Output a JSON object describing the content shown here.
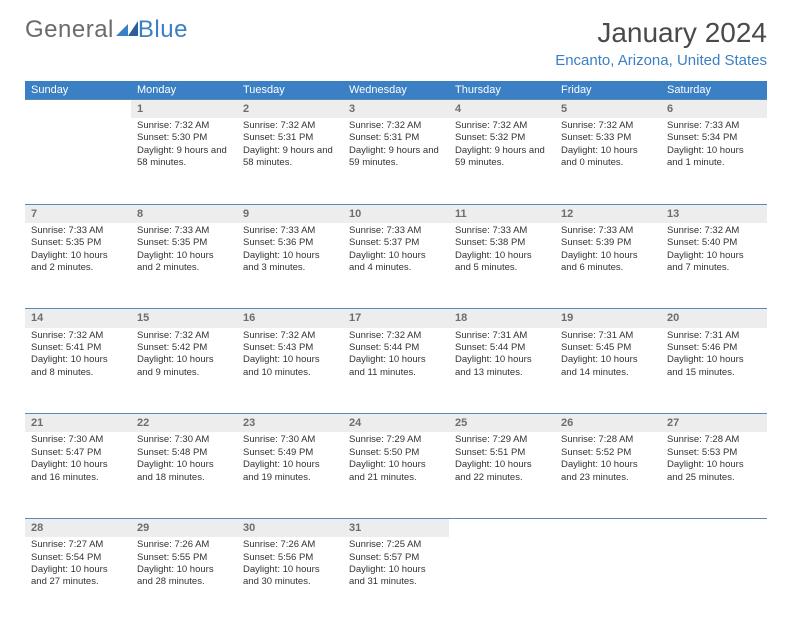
{
  "brand": {
    "part1": "General",
    "part2": "Blue"
  },
  "title": "January 2024",
  "location": "Encanto, Arizona, United States",
  "colors": {
    "header_bg": "#3b7fc4",
    "header_text": "#ffffff",
    "daynum_bg": "#ededed",
    "daynum_text": "#6d6d6d",
    "row_border": "#5b8bb5",
    "body_text": "#333333",
    "title_text": "#4a4a4a"
  },
  "typography": {
    "title_fontsize": 28,
    "location_fontsize": 15,
    "dayheader_fontsize": 11,
    "daynum_fontsize": 11,
    "cell_fontsize": 9.5
  },
  "day_headers": [
    "Sunday",
    "Monday",
    "Tuesday",
    "Wednesday",
    "Thursday",
    "Friday",
    "Saturday"
  ],
  "weeks": [
    [
      null,
      {
        "n": "1",
        "sr": "Sunrise: 7:32 AM",
        "ss": "Sunset: 5:30 PM",
        "dl": "Daylight: 9 hours and 58 minutes."
      },
      {
        "n": "2",
        "sr": "Sunrise: 7:32 AM",
        "ss": "Sunset: 5:31 PM",
        "dl": "Daylight: 9 hours and 58 minutes."
      },
      {
        "n": "3",
        "sr": "Sunrise: 7:32 AM",
        "ss": "Sunset: 5:31 PM",
        "dl": "Daylight: 9 hours and 59 minutes."
      },
      {
        "n": "4",
        "sr": "Sunrise: 7:32 AM",
        "ss": "Sunset: 5:32 PM",
        "dl": "Daylight: 9 hours and 59 minutes."
      },
      {
        "n": "5",
        "sr": "Sunrise: 7:32 AM",
        "ss": "Sunset: 5:33 PM",
        "dl": "Daylight: 10 hours and 0 minutes."
      },
      {
        "n": "6",
        "sr": "Sunrise: 7:33 AM",
        "ss": "Sunset: 5:34 PM",
        "dl": "Daylight: 10 hours and 1 minute."
      }
    ],
    [
      {
        "n": "7",
        "sr": "Sunrise: 7:33 AM",
        "ss": "Sunset: 5:35 PM",
        "dl": "Daylight: 10 hours and 2 minutes."
      },
      {
        "n": "8",
        "sr": "Sunrise: 7:33 AM",
        "ss": "Sunset: 5:35 PM",
        "dl": "Daylight: 10 hours and 2 minutes."
      },
      {
        "n": "9",
        "sr": "Sunrise: 7:33 AM",
        "ss": "Sunset: 5:36 PM",
        "dl": "Daylight: 10 hours and 3 minutes."
      },
      {
        "n": "10",
        "sr": "Sunrise: 7:33 AM",
        "ss": "Sunset: 5:37 PM",
        "dl": "Daylight: 10 hours and 4 minutes."
      },
      {
        "n": "11",
        "sr": "Sunrise: 7:33 AM",
        "ss": "Sunset: 5:38 PM",
        "dl": "Daylight: 10 hours and 5 minutes."
      },
      {
        "n": "12",
        "sr": "Sunrise: 7:33 AM",
        "ss": "Sunset: 5:39 PM",
        "dl": "Daylight: 10 hours and 6 minutes."
      },
      {
        "n": "13",
        "sr": "Sunrise: 7:32 AM",
        "ss": "Sunset: 5:40 PM",
        "dl": "Daylight: 10 hours and 7 minutes."
      }
    ],
    [
      {
        "n": "14",
        "sr": "Sunrise: 7:32 AM",
        "ss": "Sunset: 5:41 PM",
        "dl": "Daylight: 10 hours and 8 minutes."
      },
      {
        "n": "15",
        "sr": "Sunrise: 7:32 AM",
        "ss": "Sunset: 5:42 PM",
        "dl": "Daylight: 10 hours and 9 minutes."
      },
      {
        "n": "16",
        "sr": "Sunrise: 7:32 AM",
        "ss": "Sunset: 5:43 PM",
        "dl": "Daylight: 10 hours and 10 minutes."
      },
      {
        "n": "17",
        "sr": "Sunrise: 7:32 AM",
        "ss": "Sunset: 5:44 PM",
        "dl": "Daylight: 10 hours and 11 minutes."
      },
      {
        "n": "18",
        "sr": "Sunrise: 7:31 AM",
        "ss": "Sunset: 5:44 PM",
        "dl": "Daylight: 10 hours and 13 minutes."
      },
      {
        "n": "19",
        "sr": "Sunrise: 7:31 AM",
        "ss": "Sunset: 5:45 PM",
        "dl": "Daylight: 10 hours and 14 minutes."
      },
      {
        "n": "20",
        "sr": "Sunrise: 7:31 AM",
        "ss": "Sunset: 5:46 PM",
        "dl": "Daylight: 10 hours and 15 minutes."
      }
    ],
    [
      {
        "n": "21",
        "sr": "Sunrise: 7:30 AM",
        "ss": "Sunset: 5:47 PM",
        "dl": "Daylight: 10 hours and 16 minutes."
      },
      {
        "n": "22",
        "sr": "Sunrise: 7:30 AM",
        "ss": "Sunset: 5:48 PM",
        "dl": "Daylight: 10 hours and 18 minutes."
      },
      {
        "n": "23",
        "sr": "Sunrise: 7:30 AM",
        "ss": "Sunset: 5:49 PM",
        "dl": "Daylight: 10 hours and 19 minutes."
      },
      {
        "n": "24",
        "sr": "Sunrise: 7:29 AM",
        "ss": "Sunset: 5:50 PM",
        "dl": "Daylight: 10 hours and 21 minutes."
      },
      {
        "n": "25",
        "sr": "Sunrise: 7:29 AM",
        "ss": "Sunset: 5:51 PM",
        "dl": "Daylight: 10 hours and 22 minutes."
      },
      {
        "n": "26",
        "sr": "Sunrise: 7:28 AM",
        "ss": "Sunset: 5:52 PM",
        "dl": "Daylight: 10 hours and 23 minutes."
      },
      {
        "n": "27",
        "sr": "Sunrise: 7:28 AM",
        "ss": "Sunset: 5:53 PM",
        "dl": "Daylight: 10 hours and 25 minutes."
      }
    ],
    [
      {
        "n": "28",
        "sr": "Sunrise: 7:27 AM",
        "ss": "Sunset: 5:54 PM",
        "dl": "Daylight: 10 hours and 27 minutes."
      },
      {
        "n": "29",
        "sr": "Sunrise: 7:26 AM",
        "ss": "Sunset: 5:55 PM",
        "dl": "Daylight: 10 hours and 28 minutes."
      },
      {
        "n": "30",
        "sr": "Sunrise: 7:26 AM",
        "ss": "Sunset: 5:56 PM",
        "dl": "Daylight: 10 hours and 30 minutes."
      },
      {
        "n": "31",
        "sr": "Sunrise: 7:25 AM",
        "ss": "Sunset: 5:57 PM",
        "dl": "Daylight: 10 hours and 31 minutes."
      },
      null,
      null,
      null
    ]
  ]
}
